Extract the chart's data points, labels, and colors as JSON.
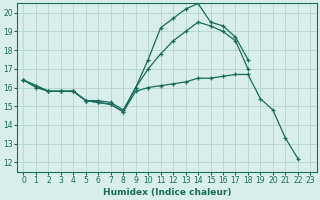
{
  "title": "",
  "xlabel": "Humidex (Indice chaleur)",
  "ylabel": "",
  "bg_color": "#d8eeea",
  "grid_color": "#b8d8d0",
  "line_color": "#1a6b5a",
  "xlim": [
    -0.5,
    23.5
  ],
  "ylim": [
    11.5,
    20.5
  ],
  "xticks": [
    0,
    1,
    2,
    3,
    4,
    5,
    6,
    7,
    8,
    9,
    10,
    11,
    12,
    13,
    14,
    15,
    16,
    17,
    18,
    19,
    20,
    21,
    22,
    23
  ],
  "yticks": [
    12,
    13,
    14,
    15,
    16,
    17,
    18,
    19,
    20
  ],
  "series": [
    {
      "x": [
        0,
        1,
        2,
        3,
        4,
        5,
        6,
        7,
        8,
        9,
        10,
        11,
        12,
        13,
        14,
        15,
        16,
        17,
        18,
        19,
        20,
        21,
        22
      ],
      "y": [
        16.4,
        16.1,
        15.8,
        15.8,
        15.8,
        15.3,
        15.2,
        15.1,
        14.7,
        15.8,
        16.0,
        16.1,
        16.2,
        16.3,
        16.5,
        16.5,
        16.6,
        16.7,
        16.7,
        15.4,
        14.8,
        13.3,
        12.2
      ]
    },
    {
      "x": [
        0,
        1,
        2,
        3,
        4,
        5,
        6,
        7,
        8,
        9,
        10,
        11,
        12,
        13,
        14,
        15,
        16,
        17,
        18
      ],
      "y": [
        16.4,
        16.1,
        15.8,
        15.8,
        15.8,
        15.3,
        15.2,
        15.1,
        14.7,
        16.0,
        17.5,
        19.2,
        19.7,
        20.2,
        20.5,
        19.5,
        19.3,
        18.7,
        17.5
      ]
    },
    {
      "x": [
        0,
        1,
        2,
        3,
        4,
        5,
        6,
        7,
        8,
        9,
        10,
        11,
        12,
        13,
        14,
        15,
        16,
        17,
        18
      ],
      "y": [
        16.4,
        16.0,
        15.8,
        15.8,
        15.8,
        15.3,
        15.3,
        15.2,
        14.8,
        16.0,
        17.0,
        17.8,
        18.5,
        19.0,
        19.5,
        19.3,
        19.0,
        18.5,
        17.0
      ]
    }
  ]
}
